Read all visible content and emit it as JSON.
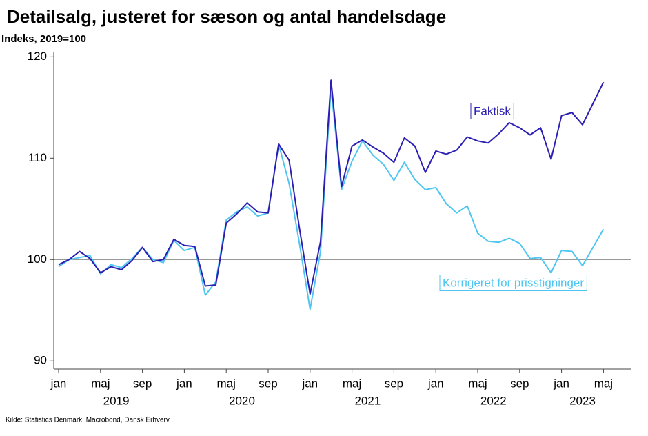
{
  "chart_data": {
    "type": "line",
    "title": "Detailsalg, justeret for sæson og antal handelsdage",
    "subtitle": "Indeks, 2019=100",
    "source": "Kilde: Statistics Denmark, Macrobond, Dansk Erhverv",
    "categories": [
      "jan",
      null,
      null,
      null,
      "maj",
      null,
      null,
      null,
      "sep",
      null,
      null,
      null,
      "jan",
      null,
      null,
      null,
      "maj",
      null,
      null,
      null,
      "sep",
      null,
      null,
      null,
      "jan",
      null,
      null,
      null,
      "maj",
      null,
      null,
      null,
      "sep",
      null,
      null,
      null,
      "jan",
      null,
      null,
      null,
      "maj",
      null,
      null,
      null,
      "sep",
      null,
      null,
      null,
      "jan",
      null,
      null,
      null,
      "maj"
    ],
    "years": [
      "2019",
      "2020",
      "2021",
      "2022",
      "2023"
    ],
    "series": [
      {
        "name": "Faktisk",
        "color": "#2b1fb3",
        "values": [
          99.5,
          100.0,
          100.8,
          100.1,
          98.7,
          99.3,
          99.0,
          99.9,
          101.2,
          99.8,
          100.0,
          102.0,
          101.4,
          101.3,
          97.4,
          97.5,
          103.6,
          104.5,
          105.6,
          104.7,
          104.6,
          111.4,
          109.8,
          103.0,
          96.6,
          101.8,
          117.7,
          107.2,
          111.2,
          111.8,
          111.1,
          110.5,
          109.6,
          112.0,
          111.2,
          108.6,
          110.7,
          110.4,
          110.8,
          112.1,
          111.7,
          111.5,
          112.4,
          113.5,
          113.0,
          112.3,
          113.0,
          109.9,
          114.2,
          114.5,
          113.3,
          115.4,
          117.5
        ]
      },
      {
        "name": "Korrigeret for prisstigninger",
        "color": "#4fc6f2",
        "values": [
          99.3,
          100.0,
          100.2,
          100.4,
          98.6,
          99.5,
          99.2,
          100.1,
          101.2,
          100.0,
          99.7,
          101.9,
          100.9,
          101.2,
          96.5,
          97.8,
          103.9,
          104.7,
          105.2,
          104.3,
          104.6,
          111.4,
          107.5,
          101.5,
          95.1,
          100.8,
          116.9,
          106.9,
          109.7,
          111.7,
          110.3,
          109.4,
          107.8,
          109.6,
          107.9,
          106.9,
          107.1,
          105.5,
          104.6,
          105.3,
          102.6,
          101.8,
          101.7,
          102.1,
          101.6,
          100.1,
          100.2,
          98.7,
          100.9,
          100.8,
          99.4,
          101.2,
          103.0
        ]
      }
    ],
    "ylim": [
      89.2,
      120.5
    ],
    "yticks": [
      90,
      100,
      110,
      120
    ],
    "hline": 100,
    "grid": false
  }
}
